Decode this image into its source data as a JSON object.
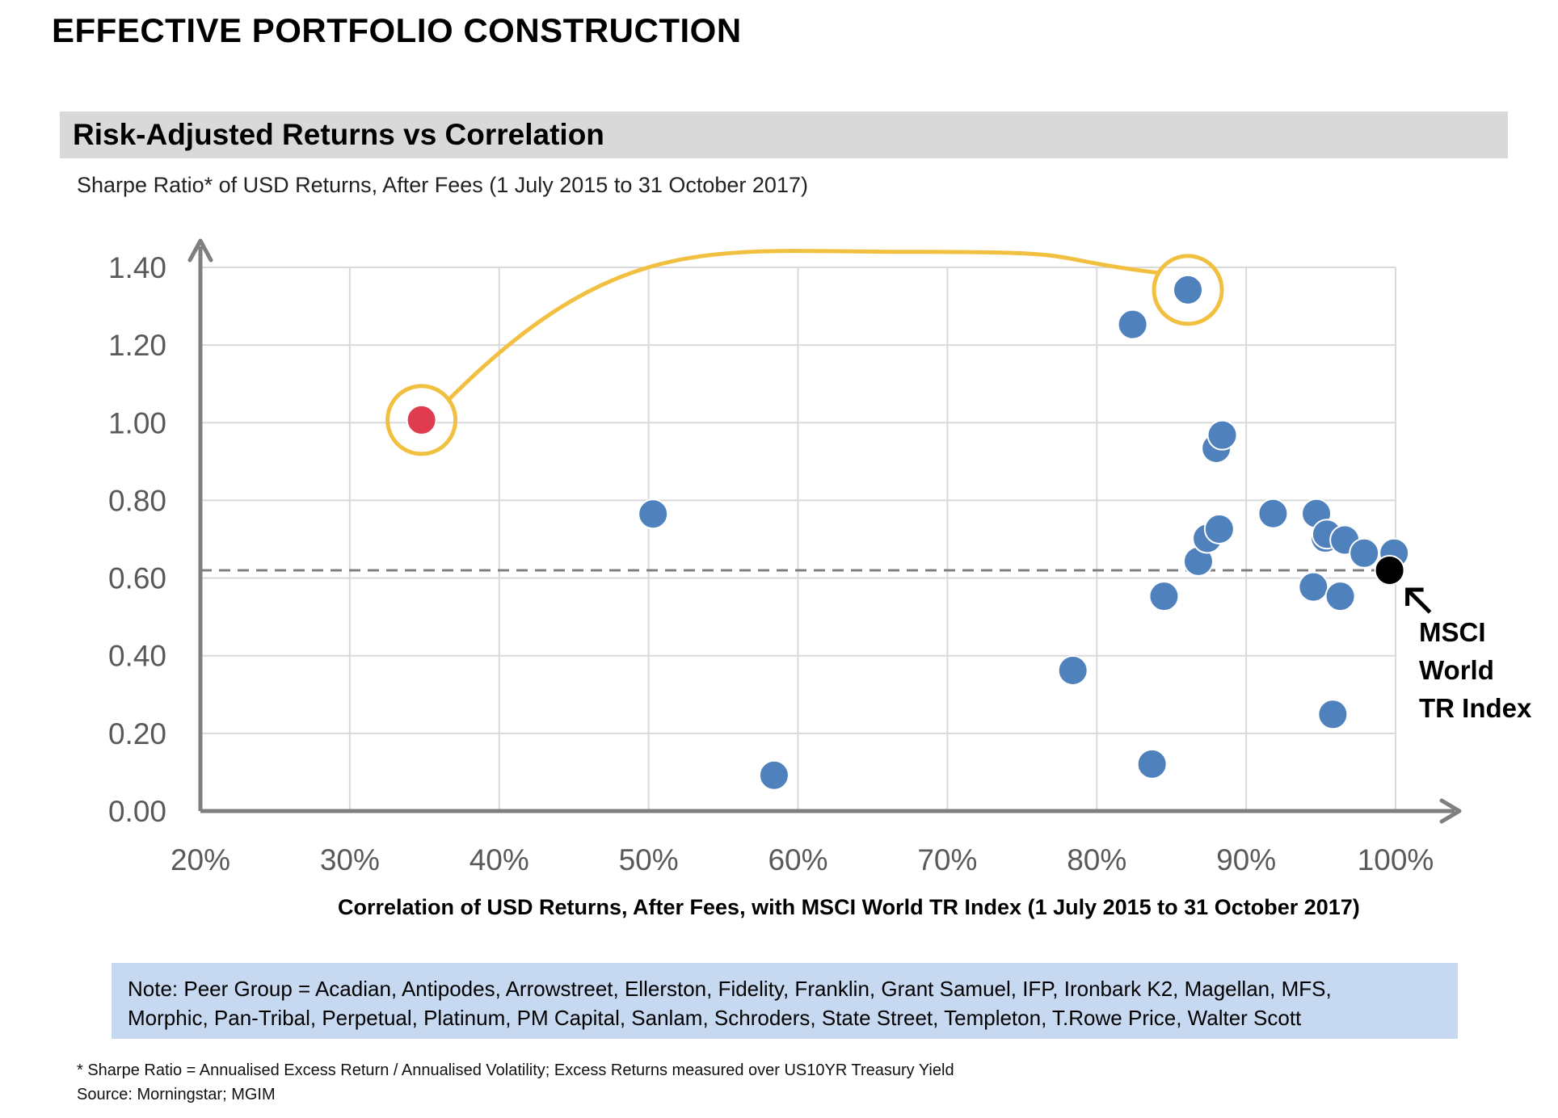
{
  "header": {
    "page_title": "EFFECTIVE PORTFOLIO CONSTRUCTION",
    "section_title": "Risk-Adjusted  Returns  vs Correlation"
  },
  "chart_data": {
    "type": "scatter",
    "subtitle": "Sharpe Ratio* of USD Returns, After Fees (1 July 2015 to 31 October 2017)",
    "xlabel": "Correlation of USD Returns, After Fees, with MSCI World TR Index (1 July 2015 to 31 October 2017)",
    "ylabel": "",
    "xlim": [
      0.2,
      1.0
    ],
    "ylim": [
      0.0,
      1.4
    ],
    "x_ticks": [
      "20%",
      "30%",
      "40%",
      "50%",
      "60%",
      "70%",
      "80%",
      "90%",
      "100%"
    ],
    "y_ticks": [
      "0.00",
      "0.20",
      "0.40",
      "0.60",
      "0.80",
      "1.00",
      "1.20",
      "1.40"
    ],
    "grid": true,
    "series": [
      {
        "color": "#4f81bd",
        "points": [
          {
            "x": 0.503,
            "y": 0.765
          },
          {
            "x": 0.584,
            "y": 0.092
          },
          {
            "x": 0.784,
            "y": 0.362
          },
          {
            "x": 0.824,
            "y": 1.253
          },
          {
            "x": 0.837,
            "y": 0.121
          },
          {
            "x": 0.845,
            "y": 0.553
          },
          {
            "x": 0.861,
            "y": 1.342
          },
          {
            "x": 0.868,
            "y": 0.643
          },
          {
            "x": 0.874,
            "y": 0.702
          },
          {
            "x": 0.882,
            "y": 0.726
          },
          {
            "x": 0.88,
            "y": 0.934
          },
          {
            "x": 0.884,
            "y": 0.968
          },
          {
            "x": 0.918,
            "y": 0.766
          },
          {
            "x": 0.945,
            "y": 0.577
          },
          {
            "x": 0.947,
            "y": 0.766
          },
          {
            "x": 0.953,
            "y": 0.703
          },
          {
            "x": 0.954,
            "y": 0.713
          },
          {
            "x": 0.958,
            "y": 0.249
          },
          {
            "x": 0.963,
            "y": 0.553
          },
          {
            "x": 0.966,
            "y": 0.698
          },
          {
            "x": 0.979,
            "y": 0.664
          },
          {
            "x": 0.999,
            "y": 0.664
          }
        ]
      },
      {
        "color": "#e03c50",
        "points": [
          {
            "x": 0.348,
            "y": 1.007
          }
        ]
      },
      {
        "color": "#000000",
        "points": [
          {
            "x": 0.996,
            "y": 0.62
          }
        ]
      }
    ],
    "reference_line": {
      "y": 0.62,
      "style": "dashed",
      "color": "#7f7f7f"
    },
    "highlight_color": "#f2c040",
    "highlight_circles": [
      {
        "x": 0.348,
        "y": 1.007
      },
      {
        "x": 0.861,
        "y": 1.342
      }
    ],
    "annotation": {
      "lines": [
        "MSCI",
        "World",
        "TR Index"
      ],
      "target": {
        "x": 0.996,
        "y": 0.62
      }
    }
  },
  "note": {
    "line1": "Note: Peer Group = Acadian, Antipodes, Arrowstreet, Ellerston, Fidelity, Franklin, Grant Samuel, IFP, Ironbark K2, Magellan, MFS,",
    "line2": "Morphic, Pan-Tribal, Perpetual, Platinum, PM Capital, Sanlam, Schroders, State Street, Templeton, T.Rowe Price, Walter Scott"
  },
  "footnotes": {
    "sharpe": "*   Sharpe Ratio = Annualised Excess Return / Annualised Volatility; Excess Returns measured over US10YR Treasury Yield",
    "source": "Source: Morningstar; MGIM"
  }
}
